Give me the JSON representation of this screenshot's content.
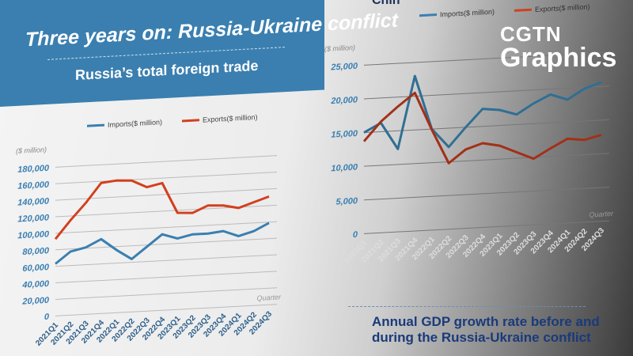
{
  "banner": {
    "title": "Three years on: Russia-Ukraine conflict",
    "subtitle": "Russia’s total foreign trade"
  },
  "right_title": "Chin",
  "logo": {
    "line1": "CGTN",
    "line2": "Graphics"
  },
  "gdp_title": {
    "line1": "Annual GDP growth rate before and",
    "line2": "during the Russia-Ukraine conflict"
  },
  "colors": {
    "imports": "#3a7fb0",
    "exports": "#d2401e",
    "axis_text": "#3a7fb0"
  },
  "chart_data": [
    {
      "type": "line",
      "title": "Russia’s total foreign trade",
      "unit_label": "($ million)",
      "xlabel": "Quarter",
      "ylim": [
        0,
        180000
      ],
      "yticks": [
        "0",
        "20,000",
        "40,000",
        "60,000",
        "80,000",
        "100,000",
        "120,000",
        "140,000",
        "160,000",
        "180,000"
      ],
      "grid": true,
      "legend_placement": "top-right",
      "categories": [
        "2021Q1",
        "2021Q2",
        "2021Q3",
        "2021Q4",
        "2022Q1",
        "2022Q2",
        "2022Q3",
        "2022Q4",
        "2023Q1",
        "2023Q2",
        "2023Q3",
        "2023Q4",
        "2024Q1",
        "2024Q2",
        "2024Q3"
      ],
      "series": [
        {
          "name": "Imports($ million)",
          "values": [
            63000,
            77000,
            81000,
            90000,
            76000,
            64000,
            78000,
            92000,
            86000,
            90000,
            90000,
            92000,
            85000,
            90000,
            99000
          ]
        },
        {
          "name": "Exports($ million)",
          "values": [
            93000,
            115000,
            135000,
            158000,
            160000,
            159000,
            150000,
            154000,
            117000,
            116000,
            124000,
            123000,
            119000,
            125000,
            131000
          ]
        }
      ]
    },
    {
      "type": "line",
      "unit_label": "($ million)",
      "xlabel": "Quarter",
      "ylim": [
        0,
        25000
      ],
      "yticks": [
        "0",
        "5,000",
        "10,000",
        "15,000",
        "20,000",
        "25,000"
      ],
      "grid": true,
      "legend_placement": "top-right",
      "categories": [
        "2021Q1",
        "2021Q2",
        "2021Q3",
        "2021Q4",
        "2022Q1",
        "2022Q2",
        "2022Q3",
        "2022Q4",
        "2023Q1",
        "2023Q2",
        "2023Q3",
        "2023Q4",
        "2024Q1",
        "2024Q2",
        "2024Q3"
      ],
      "series": [
        {
          "name": "Imports($ million)",
          "values": [
            15000,
            16300,
            12300,
            23000,
            15000,
            12200,
            15000,
            17600,
            17300,
            16500,
            18000,
            19200,
            18300,
            19800,
            20600
          ]
        },
        {
          "name": "Exports($ million)",
          "values": [
            13700,
            16500,
            18600,
            20500,
            14900,
            9800,
            11700,
            12500,
            12000,
            10900,
            9800,
            11200,
            12500,
            12200,
            12800
          ]
        }
      ]
    }
  ]
}
